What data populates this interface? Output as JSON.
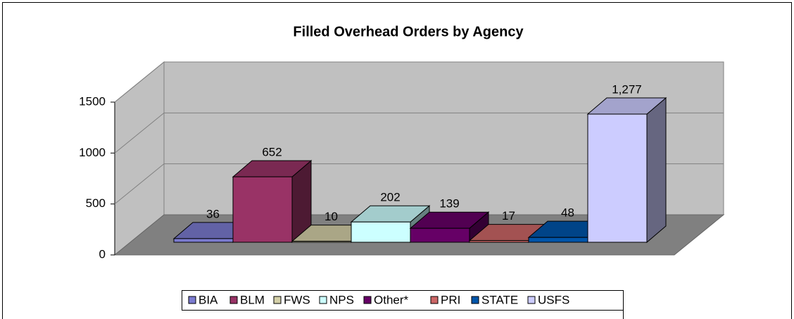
{
  "chart_data": {
    "type": "bar3d",
    "title": "Filled Overhead Orders by Agency",
    "categories": [
      "BIA",
      "BLM",
      "FWS",
      "NPS",
      "Other*",
      "PRI",
      "STATE",
      "USFS"
    ],
    "values": [
      36,
      652,
      10,
      202,
      139,
      17,
      48,
      1277
    ],
    "value_labels": [
      "36",
      "652",
      "10",
      "202",
      "139",
      "17",
      "48",
      "1,277"
    ],
    "colors": [
      "#7b7bd0",
      "#993366",
      "#d4d0a8",
      "#ccffff",
      "#660066",
      "#cc6666",
      "#0055aa",
      "#ccccff"
    ],
    "ylim": [
      0,
      1500
    ],
    "yticks": [
      0,
      500,
      1000,
      1500
    ],
    "grid": true,
    "legend": "bottom"
  }
}
